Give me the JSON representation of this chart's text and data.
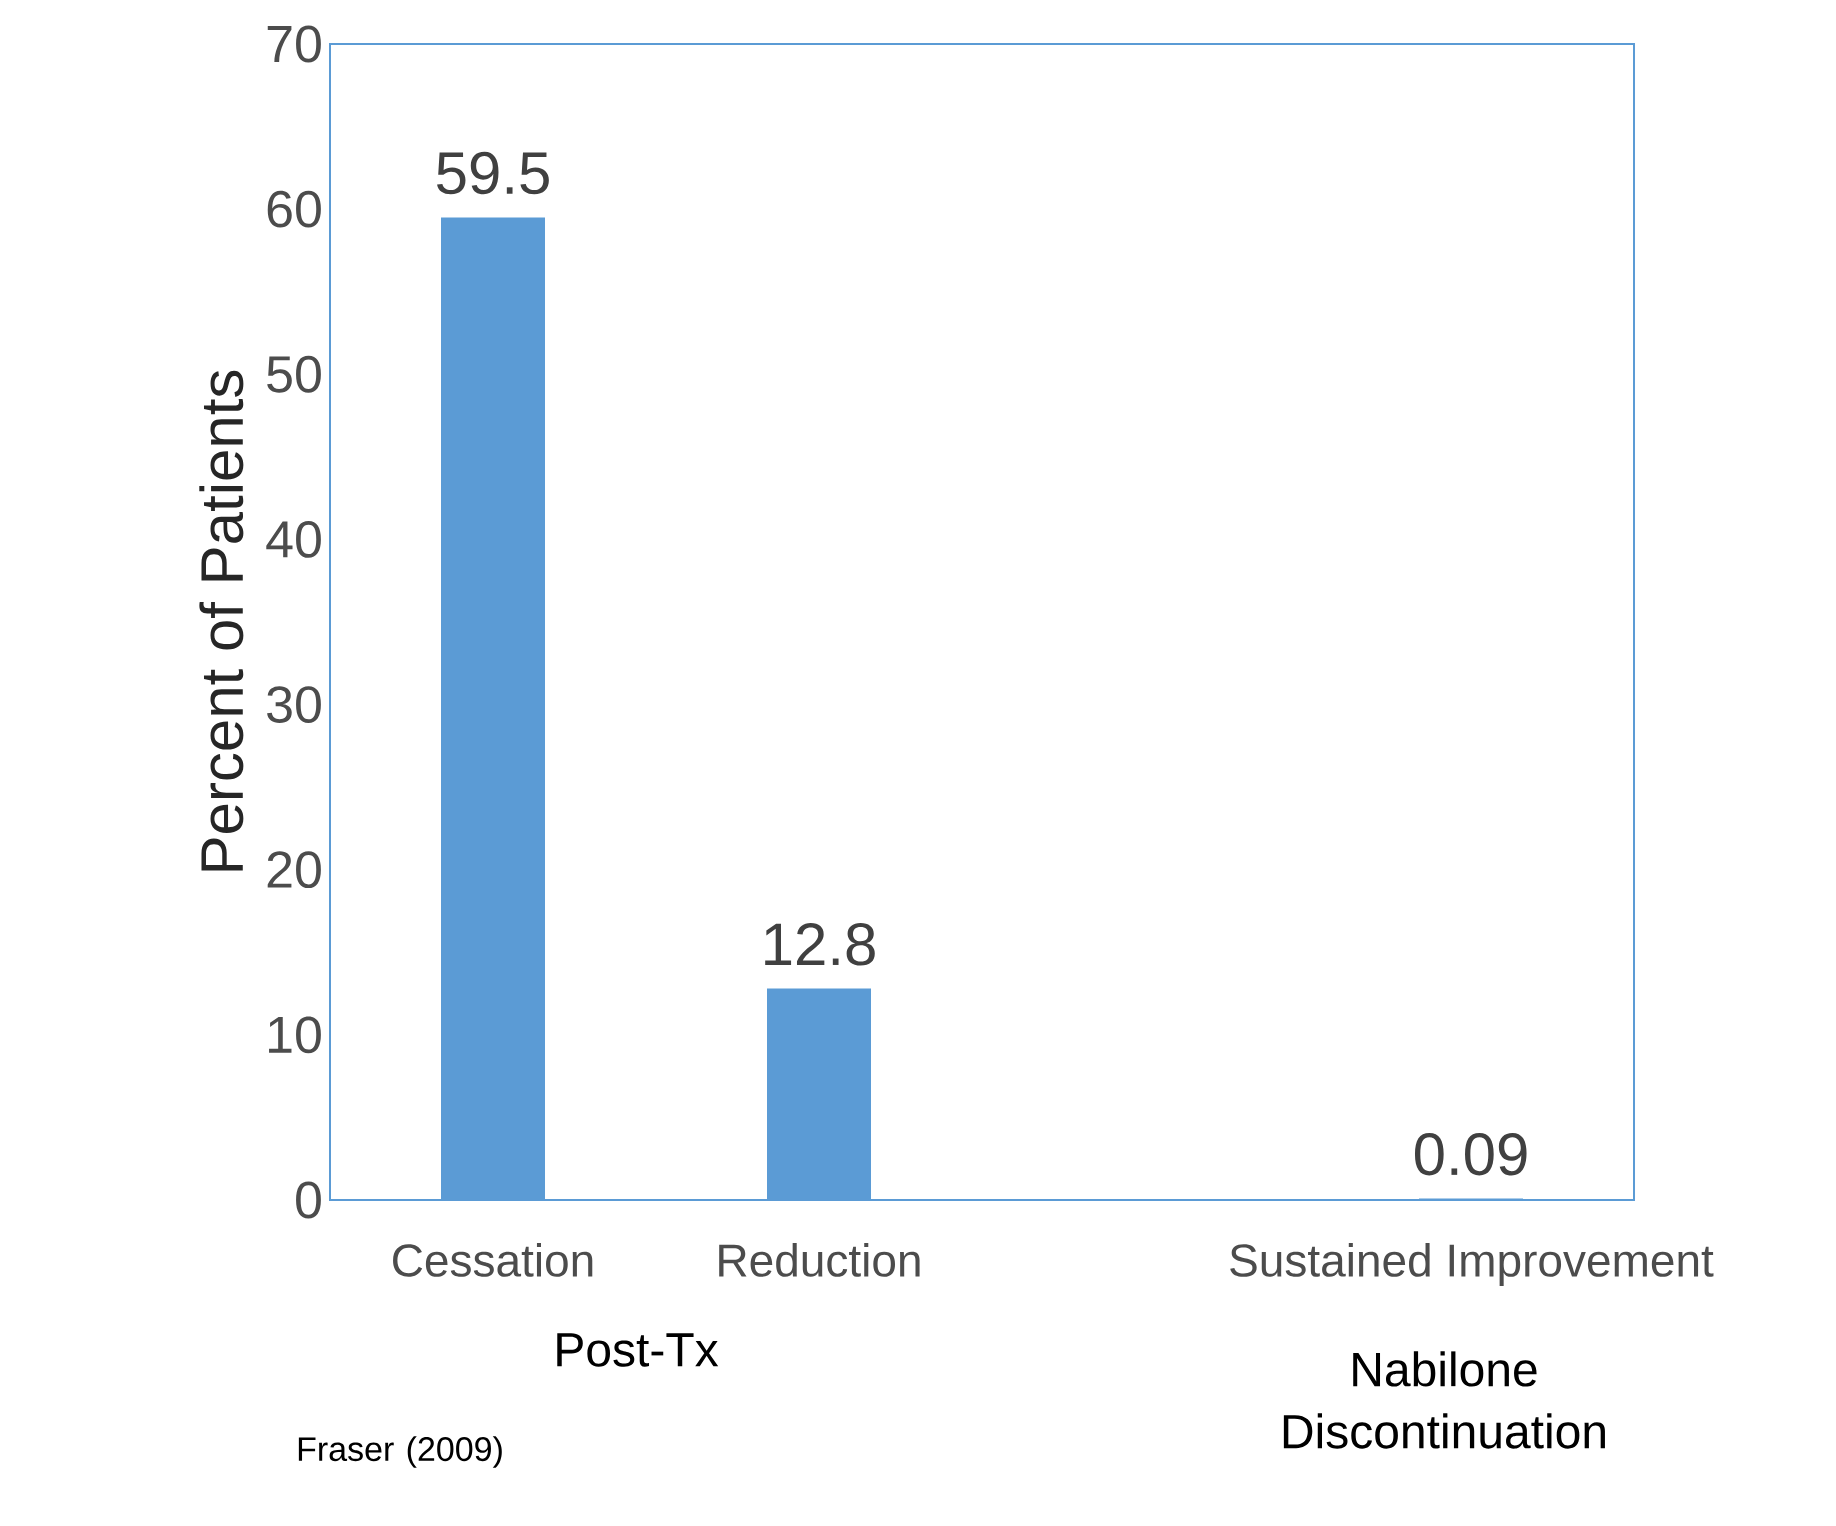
{
  "chart_data": {
    "type": "bar",
    "ylabel": "Percent of Patients",
    "categories": [
      "Cessation",
      "Reduction",
      null,
      "Sustained Improvement"
    ],
    "values": [
      59.5,
      12.8,
      null,
      0.09
    ],
    "color": "#5b9bd5",
    "ylim": [
      0,
      70
    ],
    "yticks": [
      0,
      10,
      20,
      30,
      40,
      50,
      60,
      70
    ],
    "data_labels": true,
    "grid": false,
    "annotations": [
      "Post-Tx",
      "Nabilone Discontinuation",
      "Fraser (2009)"
    ]
  }
}
